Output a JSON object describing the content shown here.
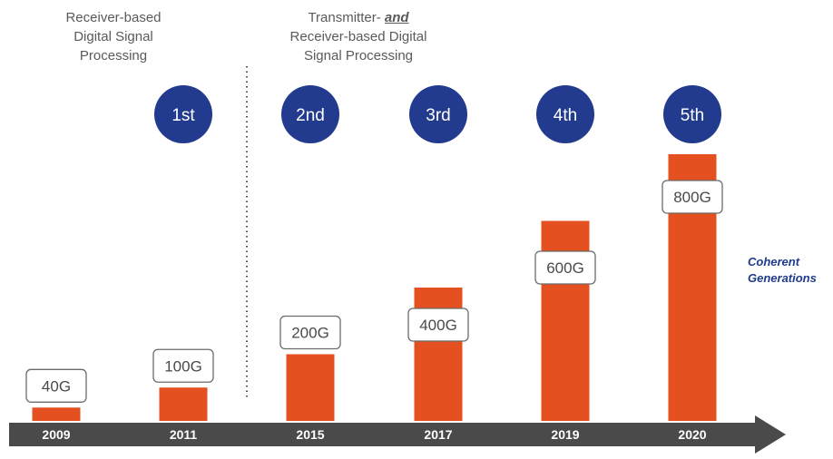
{
  "groups": [
    {
      "lines": [
        "Receiver-based",
        "Digital Signal",
        "Processing"
      ]
    },
    {
      "line1_prefix": "Transmitter- ",
      "line1_em": "and",
      "line2": "Receiver-based Digital",
      "line3": "Signal Processing"
    }
  ],
  "series_label": [
    "Coherent",
    "Generations"
  ],
  "colors": {
    "bar": "#e4501f",
    "circle": "#223b8e",
    "arrow": "#4a4a4a",
    "text": "#5a5a5a",
    "accent_text": "#1f3c8c"
  },
  "chart_data": {
    "type": "bar",
    "categories": [
      "2009",
      "2011",
      "2015",
      "2017",
      "2019",
      "2020"
    ],
    "values": [
      40,
      100,
      200,
      400,
      600,
      800
    ],
    "value_labels": [
      "40G",
      "100G",
      "200G",
      "400G",
      "600G",
      "800G"
    ],
    "generation_labels": [
      "",
      "1st",
      "2nd",
      "3rd",
      "4th",
      "5th"
    ],
    "unit": "Gbps",
    "ylim": [
      0,
      800
    ],
    "grid": false,
    "legend": "none",
    "divider_after_category": "2011"
  }
}
